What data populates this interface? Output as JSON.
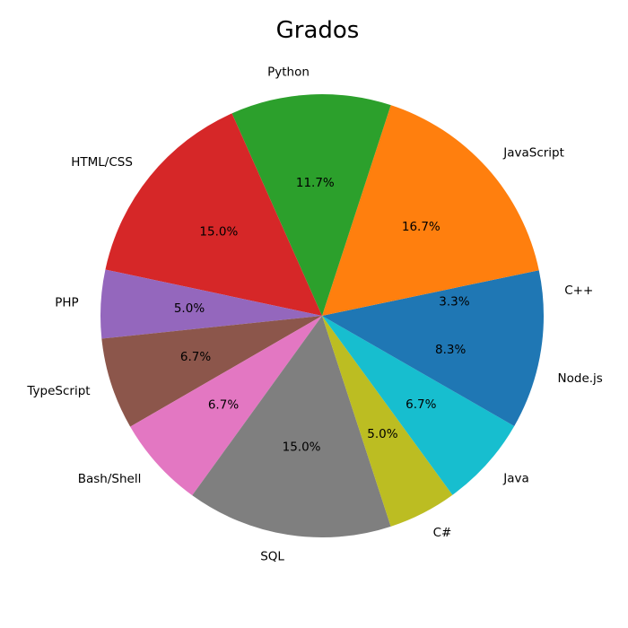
{
  "chart_data": {
    "type": "pie",
    "title": "Grados",
    "categories": [
      "C++",
      "JavaScript",
      "Python",
      "HTML/CSS",
      "PHP",
      "TypeScript",
      "Bash/Shell",
      "SQL",
      "C#",
      "Java",
      "Node.js"
    ],
    "values": [
      3.3,
      16.7,
      11.7,
      15.0,
      5.0,
      6.7,
      6.7,
      15.0,
      5.0,
      6.7,
      8.3
    ],
    "percent_labels": [
      "3.3%",
      "16.7%",
      "11.7%",
      "15.0%",
      "5.0%",
      "6.7%",
      "6.7%",
      "15.0%",
      "5.0%",
      "6.7%",
      "8.3%"
    ],
    "colors": [
      "#1f77b4",
      "#ff7f0e",
      "#2ca02c",
      "#d62728",
      "#9467bd",
      "#8c564b",
      "#e377c2",
      "#7f7f7f",
      "#bcbd22",
      "#17becf",
      "#1f77b4"
    ],
    "start_angle_deg": 0,
    "direction": "counterclockwise"
  }
}
